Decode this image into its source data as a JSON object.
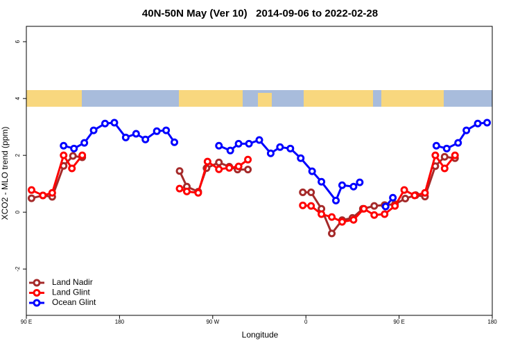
{
  "chart_data": {
    "type": "line",
    "title": "40N-50N May (Ver 10)   2014-09-06 to 2022-02-28",
    "xlabel": "Longitude",
    "ylabel": "XCO2 - MLO trend (ppm)",
    "xlim": [
      90,
      540
    ],
    "ylim": [
      -3.63,
      6.54
    ],
    "xticks": [
      {
        "value": 90,
        "label": "90 E"
      },
      180,
      {
        "value": 270,
        "label": "90 W"
      },
      {
        "value": 360,
        "label": "0"
      },
      {
        "value": 450,
        "label": "90 E"
      },
      {
        "value": 540,
        "label": "180"
      }
    ],
    "yticks": [
      -2,
      0,
      2,
      4,
      6
    ],
    "grid": false,
    "legend": "lower left",
    "series": [
      {
        "name": "Land Nadir",
        "color": "#a52a2a",
        "x": [
          95,
          106,
          115,
          126,
          135,
          144,
          null,
          238,
          245,
          256,
          264,
          276,
          286,
          294,
          304,
          null,
          357,
          365,
          375,
          385,
          395,
          405,
          415,
          426,
          436,
          446,
          456,
          466,
          475,
          485,
          494,
          504
        ],
        "values": [
          0.49,
          0.59,
          0.54,
          1.63,
          1.98,
          1.93,
          null,
          1.45,
          0.9,
          0.72,
          1.55,
          1.75,
          1.6,
          1.5,
          1.5,
          null,
          0.7,
          0.7,
          0.12,
          -0.75,
          -0.28,
          -0.2,
          0.12,
          0.22,
          0.25,
          0.28,
          0.48,
          0.6,
          0.55,
          1.62,
          1.95,
          1.9
        ]
      },
      {
        "name": "Land Glint",
        "color": "#ff0000",
        "x": [
          95,
          106,
          115,
          126,
          134,
          144,
          null,
          238,
          245,
          256,
          265,
          276,
          286,
          295,
          304,
          null,
          357,
          365,
          375,
          385,
          395,
          406,
          416,
          426,
          436,
          446,
          455,
          465,
          475,
          485,
          494,
          504
        ],
        "values": [
          0.78,
          0.59,
          0.68,
          2.0,
          1.54,
          2.0,
          null,
          0.83,
          0.73,
          0.68,
          1.78,
          1.51,
          1.56,
          1.61,
          1.85,
          null,
          0.24,
          0.22,
          -0.07,
          -0.17,
          -0.34,
          -0.27,
          0.12,
          -0.1,
          -0.07,
          0.22,
          0.78,
          0.59,
          0.68,
          2.0,
          1.54,
          2.0
        ]
      },
      {
        "name": "Ocean Glint",
        "color": "#0000ff",
        "x": [
          126,
          136,
          146,
          155,
          166,
          175,
          186,
          196,
          205,
          216,
          225,
          233,
          null,
          276,
          287,
          295,
          305,
          315,
          326,
          335,
          345,
          355,
          366,
          375,
          389,
          395,
          406,
          412,
          null,
          437,
          444,
          null,
          486,
          496,
          507,
          515,
          526,
          535
        ],
        "values": [
          2.34,
          2.24,
          2.44,
          2.88,
          3.12,
          3.15,
          2.63,
          2.76,
          2.56,
          2.85,
          2.88,
          2.46,
          null,
          2.34,
          2.17,
          2.41,
          2.41,
          2.54,
          2.07,
          2.29,
          2.24,
          1.9,
          1.44,
          1.07,
          0.41,
          0.95,
          0.9,
          1.05,
          null,
          0.2,
          0.51,
          null,
          2.34,
          2.24,
          2.44,
          2.88,
          3.12,
          3.15
        ]
      }
    ]
  }
}
